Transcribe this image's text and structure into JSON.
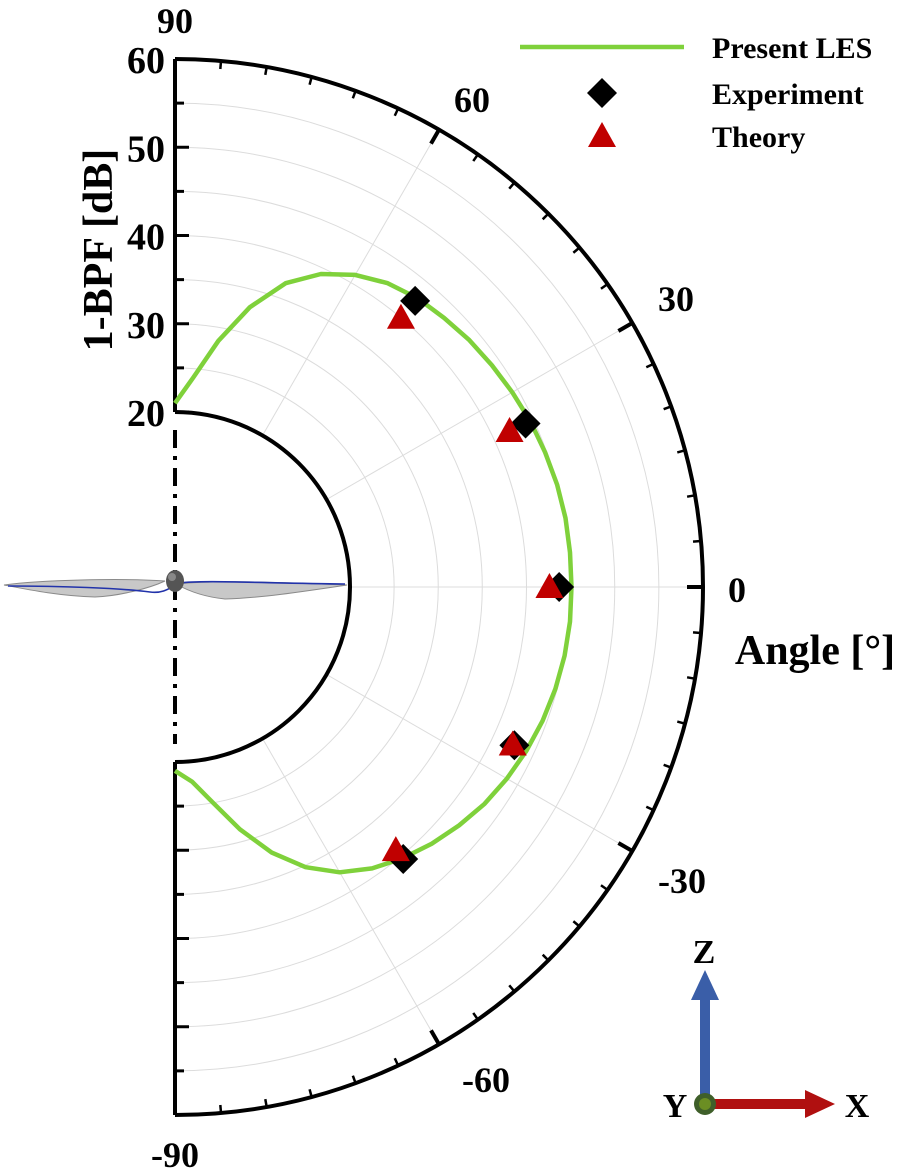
{
  "chart_data": {
    "type": "polar",
    "radial_axis": {
      "label": "1-BPF [dB]",
      "range": [
        20,
        60
      ],
      "ticks": [
        "20",
        "30",
        "40",
        "50",
        "60"
      ]
    },
    "angular_axis": {
      "label": "Angle [°]",
      "range": [
        -90,
        90
      ],
      "ticks": [
        "90",
        "60",
        "30",
        "0",
        "-30",
        "-60",
        "-90"
      ]
    },
    "grid": true,
    "legend_position": "top-right",
    "series": [
      {
        "name": "Present LES",
        "kind": "line",
        "color": "#7fd13b",
        "points": [
          {
            "angle": 90,
            "value": 21.0
          },
          {
            "angle": 85,
            "value": 24.0
          },
          {
            "angle": 80,
            "value": 28.5
          },
          {
            "angle": 75,
            "value": 33.0
          },
          {
            "angle": 70,
            "value": 36.8
          },
          {
            "angle": 65,
            "value": 39.3
          },
          {
            "angle": 60,
            "value": 41.0
          },
          {
            "angle": 55,
            "value": 42.2
          },
          {
            "angle": 50,
            "value": 42.9
          },
          {
            "angle": 45,
            "value": 43.3
          },
          {
            "angle": 40,
            "value": 43.7
          },
          {
            "angle": 35,
            "value": 44.0
          },
          {
            "angle": 30,
            "value": 44.3
          },
          {
            "angle": 25,
            "value": 44.6
          },
          {
            "angle": 20,
            "value": 44.8
          },
          {
            "angle": 15,
            "value": 45.0
          },
          {
            "angle": 10,
            "value": 45.1
          },
          {
            "angle": 5,
            "value": 45.1
          },
          {
            "angle": 0,
            "value": 45.1
          },
          {
            "angle": -5,
            "value": 45.1
          },
          {
            "angle": -10,
            "value": 45.0
          },
          {
            "angle": -15,
            "value": 44.8
          },
          {
            "angle": -20,
            "value": 44.5
          },
          {
            "angle": -25,
            "value": 44.1
          },
          {
            "angle": -30,
            "value": 43.6
          },
          {
            "angle": -35,
            "value": 43.0
          },
          {
            "angle": -40,
            "value": 42.2
          },
          {
            "angle": -45,
            "value": 41.3
          },
          {
            "angle": -50,
            "value": 40.3
          },
          {
            "angle": -55,
            "value": 39.1
          },
          {
            "angle": -60,
            "value": 37.5
          },
          {
            "angle": -65,
            "value": 35.2
          },
          {
            "angle": -70,
            "value": 32.2
          },
          {
            "angle": -75,
            "value": 28.6
          },
          {
            "angle": -80,
            "value": 25.0
          },
          {
            "angle": -85,
            "value": 22.3
          },
          {
            "angle": -90,
            "value": 21.0
          }
        ]
      },
      {
        "name": "Experiment",
        "kind": "marker",
        "marker": "diamond",
        "color": "#000000",
        "points": [
          {
            "angle": 50,
            "value": 42.5
          },
          {
            "angle": 25,
            "value": 44.0
          },
          {
            "angle": 0,
            "value": 43.7
          },
          {
            "angle": -25,
            "value": 42.6
          },
          {
            "angle": -50,
            "value": 40.4
          }
        ]
      },
      {
        "name": "Theory",
        "kind": "marker",
        "marker": "triangle",
        "color": "#c00000",
        "points": [
          {
            "angle": 50,
            "value": 40.0
          },
          {
            "angle": 25,
            "value": 42.0
          },
          {
            "angle": 0,
            "value": 42.6
          },
          {
            "angle": -25,
            "value": 42.4
          },
          {
            "angle": -50,
            "value": 39.1
          }
        ]
      }
    ]
  },
  "axes_indicator": {
    "vertical": "Z",
    "horizontal": "X",
    "origin": "Y",
    "vertical_color": "#3a5ea8",
    "horizontal_color": "#b01010",
    "origin_color": "#6b8e23"
  },
  "propeller_icon_name": "propeller-icon"
}
